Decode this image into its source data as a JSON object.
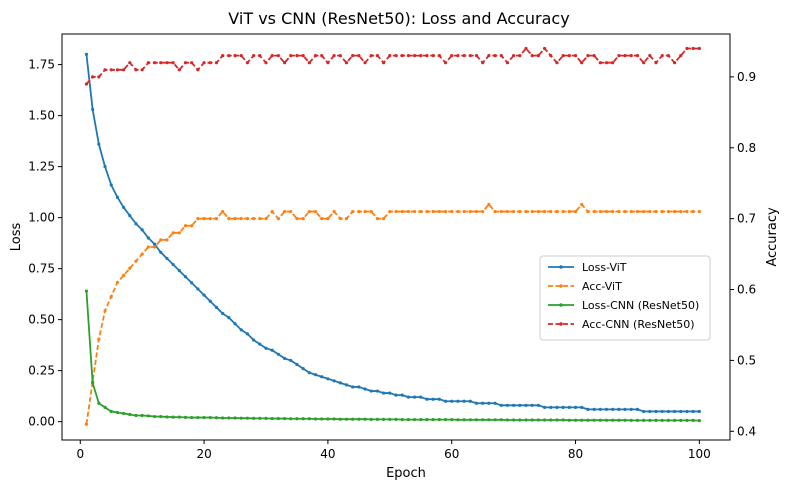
{
  "chart_data": {
    "type": "line",
    "title": "ViT vs CNN (ResNet50): Loss and Accuracy",
    "xlabel": "Epoch",
    "ylabel_left": "Loss",
    "ylabel_right": "Accuracy",
    "xlim": [
      -2.95,
      104.95
    ],
    "ylim_left": [
      -0.09,
      1.9
    ],
    "ylim_right": [
      0.3877,
      0.9605
    ],
    "xticks": [
      0,
      20,
      40,
      60,
      80,
      100
    ],
    "yticks_left": [
      "0.00",
      "0.25",
      "0.50",
      "0.75",
      "1.00",
      "1.25",
      "1.50",
      "1.75"
    ],
    "yticks_right": [
      "0.4",
      "0.5",
      "0.6",
      "0.7",
      "0.8",
      "0.9"
    ],
    "legend_position": "center-right",
    "grid": false,
    "series": [
      {
        "name": "Loss-ViT",
        "axis": "left",
        "color": "#1f77b4",
        "style": "solid",
        "marker": "dot",
        "values": [
          1.8,
          1.53,
          1.36,
          1.25,
          1.16,
          1.1,
          1.05,
          1.01,
          0.97,
          0.94,
          0.9,
          0.87,
          0.83,
          0.8,
          0.77,
          0.74,
          0.71,
          0.68,
          0.65,
          0.62,
          0.59,
          0.56,
          0.53,
          0.51,
          0.48,
          0.45,
          0.43,
          0.4,
          0.38,
          0.36,
          0.35,
          0.33,
          0.31,
          0.3,
          0.28,
          0.26,
          0.24,
          0.23,
          0.22,
          0.21,
          0.2,
          0.19,
          0.18,
          0.17,
          0.17,
          0.16,
          0.15,
          0.15,
          0.14,
          0.14,
          0.13,
          0.13,
          0.12,
          0.12,
          0.12,
          0.11,
          0.11,
          0.11,
          0.1,
          0.1,
          0.1,
          0.1,
          0.1,
          0.09,
          0.09,
          0.09,
          0.09,
          0.08,
          0.08,
          0.08,
          0.08,
          0.08,
          0.08,
          0.08,
          0.07,
          0.07,
          0.07,
          0.07,
          0.07,
          0.07,
          0.07,
          0.06,
          0.06,
          0.06,
          0.06,
          0.06,
          0.06,
          0.06,
          0.06,
          0.06,
          0.05,
          0.05,
          0.05,
          0.05,
          0.05,
          0.05,
          0.05,
          0.05,
          0.05,
          0.05
        ]
      },
      {
        "name": "Acc-ViT",
        "axis": "right",
        "color": "#ff7f0e",
        "style": "dashed",
        "marker": "dot",
        "values": [
          0.41,
          0.47,
          0.53,
          0.57,
          0.59,
          0.61,
          0.62,
          0.63,
          0.64,
          0.65,
          0.66,
          0.66,
          0.67,
          0.67,
          0.68,
          0.68,
          0.69,
          0.69,
          0.7,
          0.7,
          0.7,
          0.7,
          0.71,
          0.7,
          0.7,
          0.7,
          0.7,
          0.7,
          0.7,
          0.7,
          0.71,
          0.7,
          0.71,
          0.71,
          0.7,
          0.7,
          0.71,
          0.71,
          0.7,
          0.7,
          0.71,
          0.7,
          0.7,
          0.71,
          0.71,
          0.71,
          0.71,
          0.7,
          0.7,
          0.71,
          0.71,
          0.71,
          0.71,
          0.71,
          0.71,
          0.71,
          0.71,
          0.71,
          0.71,
          0.71,
          0.71,
          0.71,
          0.71,
          0.71,
          0.71,
          0.72,
          0.71,
          0.71,
          0.71,
          0.71,
          0.71,
          0.71,
          0.71,
          0.71,
          0.71,
          0.71,
          0.71,
          0.71,
          0.71,
          0.71,
          0.72,
          0.71,
          0.71,
          0.71,
          0.71,
          0.71,
          0.71,
          0.71,
          0.71,
          0.71,
          0.71,
          0.71,
          0.71,
          0.71,
          0.71,
          0.71,
          0.71,
          0.71,
          0.71,
          0.71
        ]
      },
      {
        "name": "Loss-CNN (ResNet50)",
        "axis": "left",
        "color": "#2ca02c",
        "style": "solid",
        "marker": "dot",
        "values": [
          0.64,
          0.19,
          0.09,
          0.07,
          0.05,
          0.045,
          0.04,
          0.035,
          0.03,
          0.03,
          0.028,
          0.025,
          0.025,
          0.023,
          0.022,
          0.022,
          0.021,
          0.02,
          0.02,
          0.02,
          0.02,
          0.019,
          0.018,
          0.018,
          0.018,
          0.017,
          0.017,
          0.016,
          0.016,
          0.016,
          0.015,
          0.015,
          0.015,
          0.014,
          0.014,
          0.014,
          0.014,
          0.013,
          0.013,
          0.013,
          0.013,
          0.012,
          0.012,
          0.012,
          0.012,
          0.012,
          0.011,
          0.011,
          0.011,
          0.011,
          0.011,
          0.01,
          0.01,
          0.01,
          0.01,
          0.01,
          0.01,
          0.01,
          0.01,
          0.01,
          0.009,
          0.009,
          0.009,
          0.009,
          0.009,
          0.009,
          0.009,
          0.009,
          0.008,
          0.008,
          0.008,
          0.008,
          0.008,
          0.008,
          0.008,
          0.008,
          0.008,
          0.008,
          0.007,
          0.007,
          0.007,
          0.007,
          0.007,
          0.007,
          0.007,
          0.007,
          0.007,
          0.007,
          0.006,
          0.006,
          0.006,
          0.006,
          0.006,
          0.006,
          0.006,
          0.006,
          0.006,
          0.006,
          0.006,
          0.005
        ]
      },
      {
        "name": "Acc-CNN (ResNet50)",
        "axis": "right",
        "color": "#d62728",
        "style": "dashed",
        "marker": "dot",
        "values": [
          0.89,
          0.9,
          0.9,
          0.91,
          0.91,
          0.91,
          0.91,
          0.92,
          0.91,
          0.91,
          0.92,
          0.92,
          0.92,
          0.92,
          0.92,
          0.91,
          0.92,
          0.92,
          0.91,
          0.92,
          0.92,
          0.92,
          0.93,
          0.93,
          0.93,
          0.93,
          0.92,
          0.93,
          0.93,
          0.92,
          0.93,
          0.93,
          0.92,
          0.93,
          0.93,
          0.93,
          0.92,
          0.93,
          0.93,
          0.92,
          0.93,
          0.93,
          0.92,
          0.93,
          0.93,
          0.92,
          0.93,
          0.93,
          0.92,
          0.93,
          0.93,
          0.93,
          0.93,
          0.93,
          0.93,
          0.93,
          0.93,
          0.93,
          0.92,
          0.93,
          0.93,
          0.93,
          0.93,
          0.93,
          0.92,
          0.93,
          0.93,
          0.93,
          0.92,
          0.93,
          0.93,
          0.94,
          0.93,
          0.93,
          0.94,
          0.93,
          0.92,
          0.93,
          0.93,
          0.93,
          0.92,
          0.93,
          0.93,
          0.92,
          0.92,
          0.92,
          0.93,
          0.93,
          0.93,
          0.93,
          0.92,
          0.93,
          0.92,
          0.93,
          0.93,
          0.92,
          0.93,
          0.94,
          0.94,
          0.94
        ]
      }
    ]
  }
}
